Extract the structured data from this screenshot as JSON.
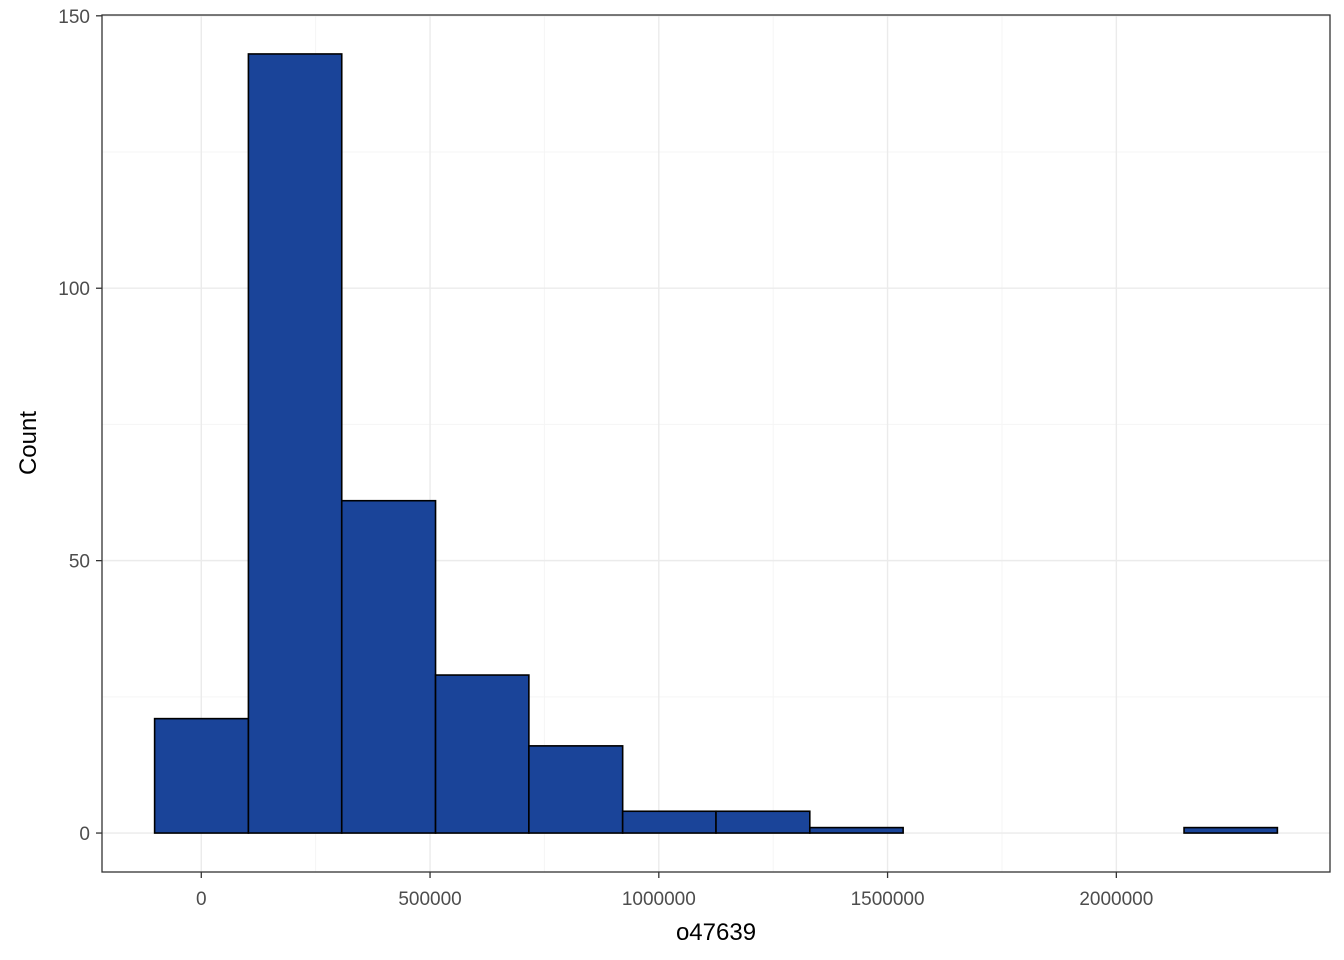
{
  "chart_data": {
    "type": "bar",
    "subtype": "histogram",
    "title": "",
    "xlabel": "o47639",
    "ylabel": "Count",
    "bins": [
      {
        "x0": -102000,
        "x1": 103000,
        "count": 21
      },
      {
        "x0": 103000,
        "x1": 307000,
        "count": 143
      },
      {
        "x0": 307000,
        "x1": 512000,
        "count": 61
      },
      {
        "x0": 512000,
        "x1": 716000,
        "count": 29
      },
      {
        "x0": 716000,
        "x1": 921000,
        "count": 16
      },
      {
        "x0": 921000,
        "x1": 1125000,
        "count": 4
      },
      {
        "x0": 1125000,
        "x1": 1330000,
        "count": 4
      },
      {
        "x0": 1330000,
        "x1": 1534000,
        "count": 1
      },
      {
        "x0": 1534000,
        "x1": 1739000,
        "count": 0
      },
      {
        "x0": 1739000,
        "x1": 1943000,
        "count": 0
      },
      {
        "x0": 1943000,
        "x1": 2148000,
        "count": 0
      },
      {
        "x0": 2148000,
        "x1": 2352000,
        "count": 1
      }
    ],
    "xlim": [
      -217000,
      2467000
    ],
    "ylim": [
      -7.15,
      150.15
    ],
    "xticks": [
      0,
      500000,
      1000000,
      1500000,
      2000000
    ],
    "xtick_labels": [
      "0",
      "500000",
      "1000000",
      "1500000",
      "2000000"
    ],
    "yticks": [
      0,
      50,
      100,
      150
    ],
    "ytick_labels": [
      "0",
      "50",
      "100",
      "150"
    ],
    "grid": true,
    "legend": "none",
    "bar_fill": "#1a4499",
    "bar_stroke": "#000000",
    "grid_major_color": "#ebebeb",
    "grid_minor_color": "#f5f5f5",
    "panel_border_color": "#333333"
  }
}
